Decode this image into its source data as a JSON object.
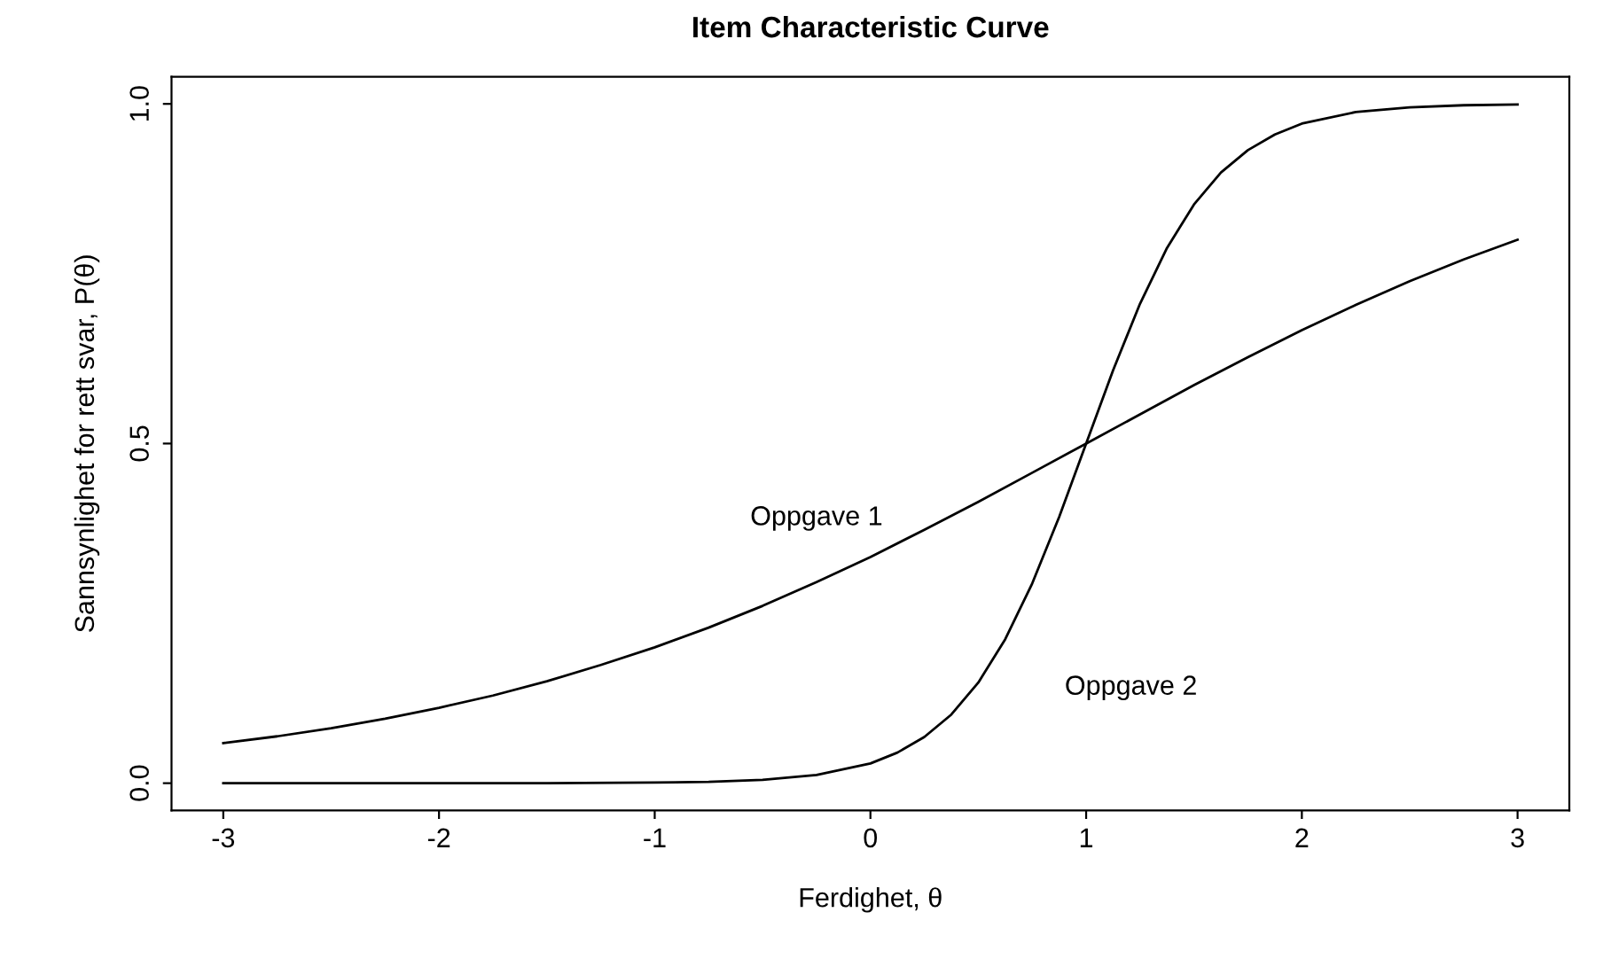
{
  "chart_data": {
    "type": "line",
    "title": "Item Characteristic Curve",
    "xlabel": "Ferdighet, θ",
    "ylabel": "Sannsynlighet for rett svar, P(θ)",
    "xlim": [
      -3.24,
      3.24
    ],
    "ylim": [
      -0.04,
      1.04
    ],
    "xticks": [
      -3,
      -2,
      -1,
      0,
      1,
      2,
      3
    ],
    "yticks": [
      {
        "value": 0,
        "label": "0.0"
      },
      {
        "value": 0.5,
        "label": "0.5"
      },
      {
        "value": 1,
        "label": "1.0"
      }
    ],
    "grid": false,
    "legend": false,
    "marker": "none",
    "line_style": "solid",
    "series": [
      {
        "name": "Oppgave 1",
        "color": "#000000",
        "x": [
          -3,
          -2.75,
          -2.5,
          -2.25,
          -2,
          -1.75,
          -1.5,
          -1.25,
          -1,
          -0.75,
          -0.5,
          -0.25,
          0,
          0.25,
          0.5,
          0.75,
          1,
          1.25,
          1.5,
          1.75,
          2,
          2.25,
          2.5,
          2.75,
          3
        ],
        "values": [
          0.059,
          0.069,
          0.081,
          0.095,
          0.111,
          0.129,
          0.15,
          0.174,
          0.2,
          0.229,
          0.261,
          0.296,
          0.333,
          0.373,
          0.414,
          0.457,
          0.5,
          0.543,
          0.586,
          0.627,
          0.667,
          0.704,
          0.739,
          0.771,
          0.8
        ]
      },
      {
        "name": "Oppgave 2",
        "color": "#000000",
        "x": [
          -3,
          -2.5,
          -2,
          -1.5,
          -1,
          -0.75,
          -0.5,
          -0.25,
          0,
          0.125,
          0.25,
          0.375,
          0.5,
          0.625,
          0.75,
          0.875,
          1,
          1.125,
          1.25,
          1.375,
          1.5,
          1.625,
          1.75,
          1.875,
          2,
          2.25,
          2.5,
          2.75,
          3
        ],
        "values": [
          0,
          0,
          0,
          0,
          0.001,
          0.002,
          0.005,
          0.012,
          0.029,
          0.045,
          0.068,
          0.101,
          0.148,
          0.212,
          0.294,
          0.392,
          0.5,
          0.608,
          0.706,
          0.788,
          0.852,
          0.899,
          0.932,
          0.955,
          0.971,
          0.988,
          0.995,
          0.998,
          0.999
        ]
      }
    ]
  }
}
